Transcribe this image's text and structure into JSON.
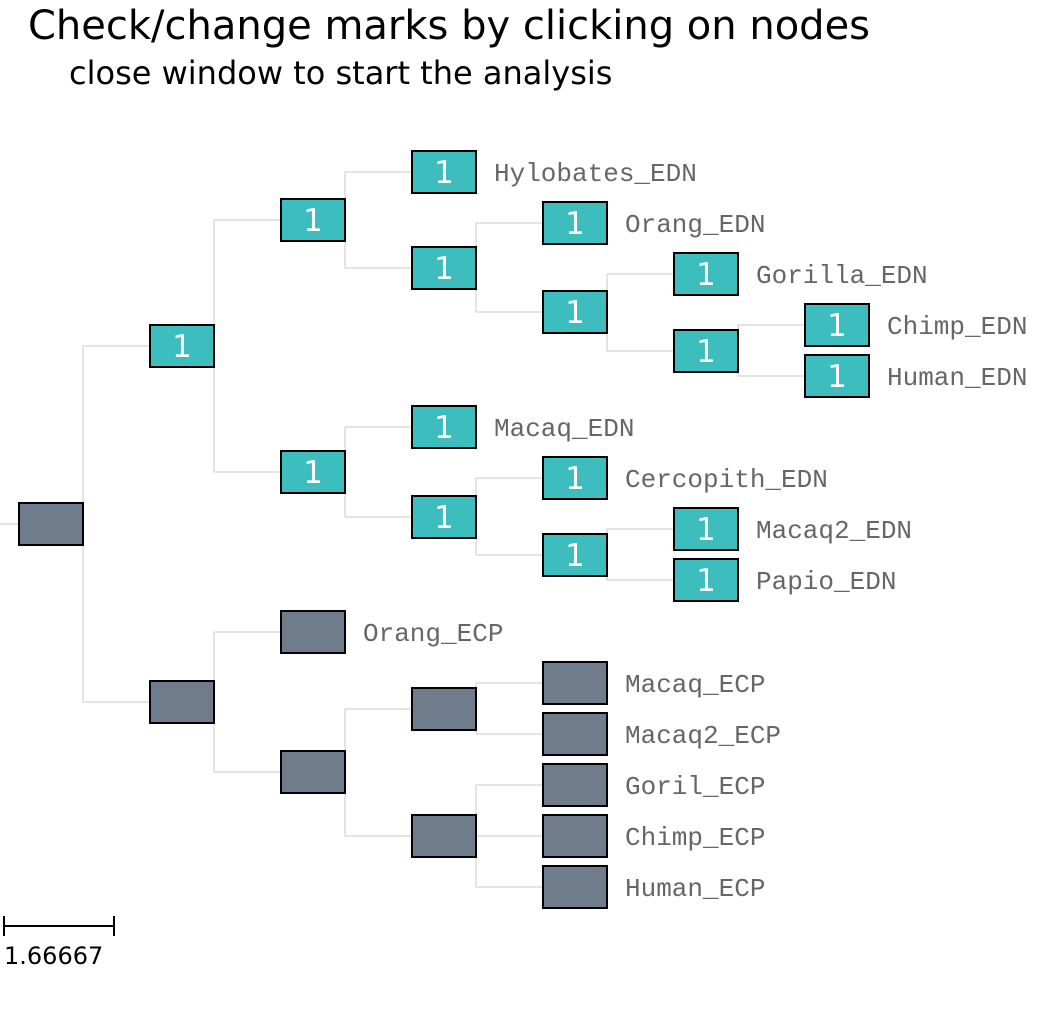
{
  "header": {
    "title": "Check/change marks by clicking on nodes",
    "subtitle": "close window to start the analysis"
  },
  "colors": {
    "marked_node": "#3dbdbd",
    "unmarked_node": "#6f7c8c",
    "node_border": "#000000",
    "branch": "#c8c8c8",
    "label": "#666666"
  },
  "tree": {
    "nodes": [
      {
        "id": "root",
        "mark": ""
      },
      {
        "id": "edn-clade",
        "mark": "1"
      },
      {
        "id": "ecp-clade",
        "mark": ""
      },
      {
        "id": "edn-apes",
        "mark": "1"
      },
      {
        "id": "edn-monkeys",
        "mark": "1"
      },
      {
        "id": "hylobates-edn",
        "mark": "1",
        "label": "Hylobates_EDN"
      },
      {
        "id": "edn-great-apes",
        "mark": "1"
      },
      {
        "id": "orang-edn",
        "mark": "1",
        "label": "Orang_EDN"
      },
      {
        "id": "edn-african-apes",
        "mark": "1"
      },
      {
        "id": "gorilla-edn",
        "mark": "1",
        "label": "Gorilla_EDN"
      },
      {
        "id": "edn-chimp-human",
        "mark": "1"
      },
      {
        "id": "chimp-edn",
        "mark": "1",
        "label": "Chimp_EDN"
      },
      {
        "id": "human-edn",
        "mark": "1",
        "label": "Human_EDN"
      },
      {
        "id": "macaq-edn",
        "mark": "1",
        "label": "Macaq_EDN"
      },
      {
        "id": "edn-old-world",
        "mark": "1"
      },
      {
        "id": "cercopith-edn",
        "mark": "1",
        "label": "Cercopith_EDN"
      },
      {
        "id": "edn-macaq2-papio",
        "mark": "1"
      },
      {
        "id": "macaq2-edn",
        "mark": "1",
        "label": "Macaq2_EDN"
      },
      {
        "id": "papio-edn",
        "mark": "1",
        "label": "Papio_EDN"
      },
      {
        "id": "orang-ecp",
        "mark": "",
        "label": "Orang_ECP"
      },
      {
        "id": "ecp-inner",
        "mark": ""
      },
      {
        "id": "ecp-macaques",
        "mark": ""
      },
      {
        "id": "macaq-ecp",
        "mark": "",
        "label": "Macaq_ECP"
      },
      {
        "id": "macaq2-ecp",
        "mark": "",
        "label": "Macaq2_ECP"
      },
      {
        "id": "ecp-african-apes",
        "mark": ""
      },
      {
        "id": "goril-ecp",
        "mark": "",
        "label": "Goril_ECP"
      },
      {
        "id": "chimp-ecp",
        "mark": "",
        "label": "Chimp_ECP"
      },
      {
        "id": "human-ecp",
        "mark": "",
        "label": "Human_ECP"
      }
    ]
  },
  "scale_bar": {
    "label": "1.66667"
  }
}
